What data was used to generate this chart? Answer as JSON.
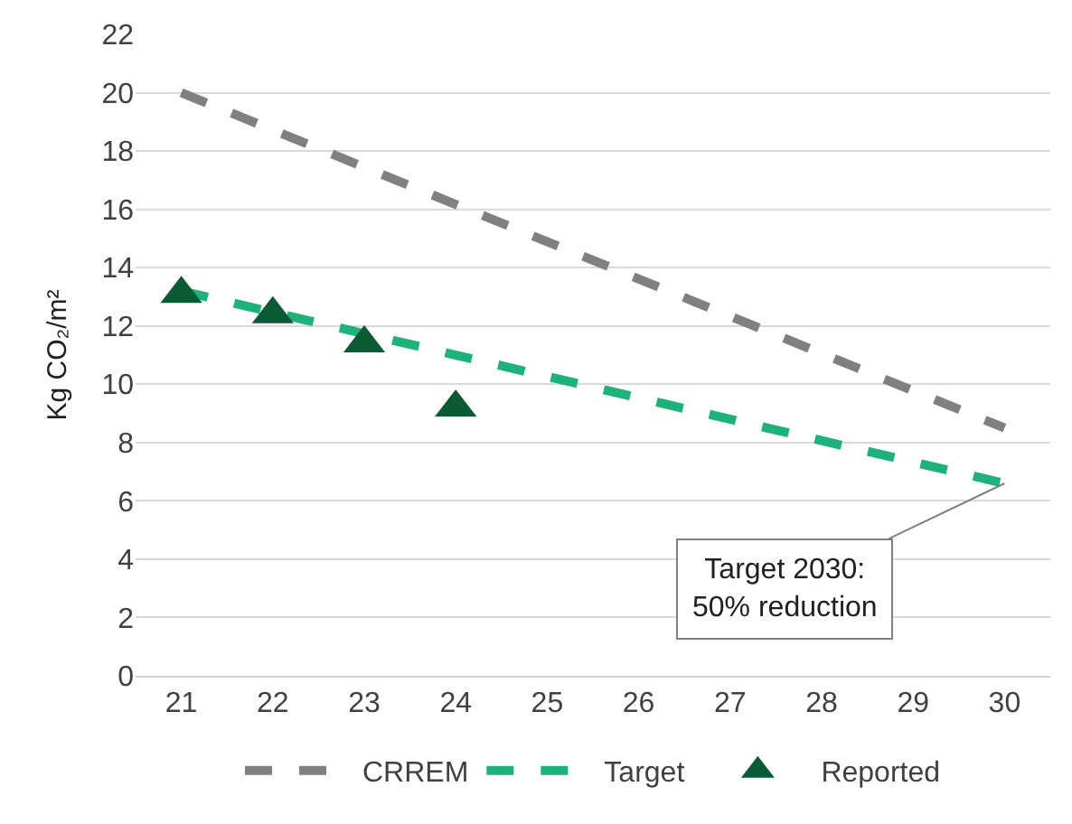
{
  "chart_data": {
    "type": "line",
    "ylabel": "Kg CO₂/m²",
    "xlim": [
      20.5,
      30.5
    ],
    "xticks": [
      21,
      22,
      23,
      24,
      25,
      26,
      27,
      28,
      29,
      30
    ],
    "ylim": [
      0,
      22
    ],
    "yticks": [
      0,
      2,
      4,
      6,
      8,
      10,
      12,
      14,
      16,
      18,
      20,
      22
    ],
    "grid": "y",
    "legend": "bottom",
    "series": [
      {
        "name": "CRREM",
        "color": "#808080",
        "line_style": "dashed",
        "marker": "none",
        "x": [
          21,
          30
        ],
        "values": [
          20.0,
          8.5
        ]
      },
      {
        "name": "Target",
        "color": "#1db27a",
        "line_style": "dashed",
        "marker": "none",
        "x": [
          21,
          30
        ],
        "values": [
          13.2,
          6.6
        ]
      },
      {
        "name": "Reported",
        "type": "scatter",
        "color": "#0b5a36",
        "marker": "triangle",
        "x": [
          21,
          22,
          23,
          24
        ],
        "values": [
          13.1,
          12.4,
          11.4,
          9.2
        ]
      }
    ],
    "annotations": [
      {
        "text": "Target 2030:\n50% reduction",
        "x": 30,
        "y": 6.6
      }
    ]
  }
}
